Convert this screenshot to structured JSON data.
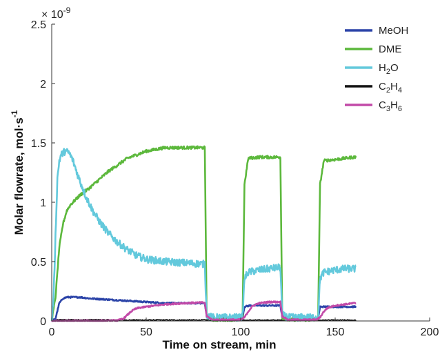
{
  "chart_data": {
    "type": "line",
    "xlabel": "Time on stream, min",
    "ylabel_main": "Molar flowrate, mol·s",
    "ylabel_sup": "-1",
    "y_multiplier": "× 10",
    "y_multiplier_exp": "-9",
    "xlim": [
      0,
      200
    ],
    "ylim": [
      0,
      2.5
    ],
    "x_ticks": [
      0,
      50,
      100,
      150,
      200
    ],
    "x_tick_labels": [
      "0",
      "50",
      "100",
      "150",
      "200"
    ],
    "y_ticks": [
      0,
      0.5,
      1,
      1.5,
      2,
      2.5
    ],
    "y_tick_labels": [
      "0",
      "0.5",
      "1",
      "1.5",
      "2",
      "2.5"
    ],
    "grid": false,
    "legend_placement": "top-right",
    "series": [
      {
        "name": "MeOH",
        "label_main": "MeOH",
        "label_sub": "",
        "label_rest": "",
        "label_sub2": "",
        "color": "#2c44a8",
        "x": [
          0,
          2,
          4,
          6,
          8,
          10,
          15,
          20,
          30,
          40,
          50,
          60,
          70,
          80,
          81,
          82,
          85,
          90,
          95,
          100,
          101,
          102,
          105,
          110,
          115,
          120,
          121,
          122,
          125,
          130,
          135,
          140,
          141,
          142,
          145,
          150,
          155,
          160,
          161
        ],
        "y": [
          0,
          0.02,
          0.15,
          0.19,
          0.2,
          0.2,
          0.2,
          0.19,
          0.18,
          0.17,
          0.16,
          0.15,
          0.15,
          0.15,
          0.15,
          0.04,
          0.02,
          0.02,
          0.02,
          0.02,
          0.03,
          0.12,
          0.13,
          0.13,
          0.13,
          0.13,
          0.13,
          0.03,
          0.02,
          0.02,
          0.02,
          0.02,
          0.02,
          0.12,
          0.12,
          0.12,
          0.12,
          0.12,
          0.12
        ],
        "noise": 0.006
      },
      {
        "name": "DME",
        "label_main": "DME",
        "label_sub": "",
        "label_rest": "",
        "label_sub2": "",
        "color": "#5cb83c",
        "x": [
          0,
          2,
          4,
          6,
          8,
          10,
          15,
          20,
          30,
          40,
          50,
          60,
          70,
          80,
          81,
          82,
          85,
          90,
          95,
          100,
          101,
          102,
          104,
          110,
          115,
          120,
          121,
          122,
          125,
          130,
          135,
          140,
          141,
          142,
          144,
          150,
          155,
          160,
          161
        ],
        "y": [
          0,
          0.2,
          0.62,
          0.82,
          0.93,
          0.98,
          1.06,
          1.12,
          1.26,
          1.37,
          1.43,
          1.46,
          1.46,
          1.46,
          1.46,
          0.04,
          0.01,
          0.01,
          0.01,
          0.01,
          0.03,
          1.15,
          1.37,
          1.38,
          1.38,
          1.38,
          1.38,
          0.03,
          0.01,
          0.01,
          0.01,
          0.01,
          0.03,
          1.15,
          1.35,
          1.36,
          1.37,
          1.38,
          1.38
        ],
        "noise": 0.012
      },
      {
        "name": "H2O",
        "label_main": "H",
        "label_sub": "2",
        "label_rest": "O",
        "label_sub2": "",
        "color": "#63c9dc",
        "x": [
          0,
          1,
          2,
          3,
          4,
          5,
          7,
          9,
          11,
          14,
          18,
          22,
          26,
          30,
          35,
          40,
          45,
          50,
          60,
          70,
          80,
          81,
          82,
          85,
          90,
          95,
          100,
          101,
          102,
          104,
          110,
          115,
          120,
          121,
          122,
          125,
          130,
          135,
          140,
          141,
          142,
          144,
          150,
          155,
          160,
          161
        ],
        "y": [
          0,
          0.2,
          0.72,
          1.2,
          1.35,
          1.4,
          1.43,
          1.42,
          1.36,
          1.22,
          1.05,
          0.92,
          0.82,
          0.74,
          0.66,
          0.6,
          0.55,
          0.52,
          0.5,
          0.49,
          0.48,
          0.48,
          0.05,
          0.03,
          0.03,
          0.03,
          0.03,
          0.04,
          0.36,
          0.41,
          0.43,
          0.44,
          0.45,
          0.45,
          0.05,
          0.03,
          0.03,
          0.03,
          0.03,
          0.04,
          0.36,
          0.41,
          0.43,
          0.44,
          0.44,
          0.44
        ],
        "noise": 0.03
      },
      {
        "name": "C2H4",
        "label_main": "C",
        "label_sub": "2",
        "label_rest": "H",
        "label_sub2": "4",
        "color": "#111111",
        "x": [
          0,
          20,
          40,
          60,
          80,
          100,
          120,
          140,
          161
        ],
        "y": [
          0.01,
          0.01,
          0.008,
          0.008,
          0.008,
          0.007,
          0.007,
          0.007,
          0.007
        ],
        "noise": 0.004
      },
      {
        "name": "C3H6",
        "label_main": "C",
        "label_sub": "3",
        "label_rest": "H",
        "label_sub2": "6",
        "color": "#c24aa8",
        "x": [
          0,
          10,
          20,
          30,
          35,
          38,
          40,
          42,
          44,
          46,
          50,
          55,
          60,
          70,
          80,
          81,
          82,
          85,
          90,
          95,
          100,
          102,
          104,
          106,
          108,
          110,
          115,
          120,
          121,
          122,
          125,
          130,
          135,
          140,
          142,
          144,
          146,
          150,
          155,
          160,
          161
        ],
        "y": [
          0,
          0,
          0,
          0,
          0.005,
          0.02,
          0.05,
          0.08,
          0.1,
          0.11,
          0.12,
          0.13,
          0.14,
          0.15,
          0.155,
          0.155,
          0.04,
          0.01,
          0.01,
          0.01,
          0.01,
          0.03,
          0.08,
          0.12,
          0.14,
          0.15,
          0.16,
          0.16,
          0.16,
          0.04,
          0.01,
          0.01,
          0.01,
          0.01,
          0.03,
          0.08,
          0.11,
          0.13,
          0.14,
          0.15,
          0.15
        ],
        "noise": 0.006
      }
    ]
  }
}
